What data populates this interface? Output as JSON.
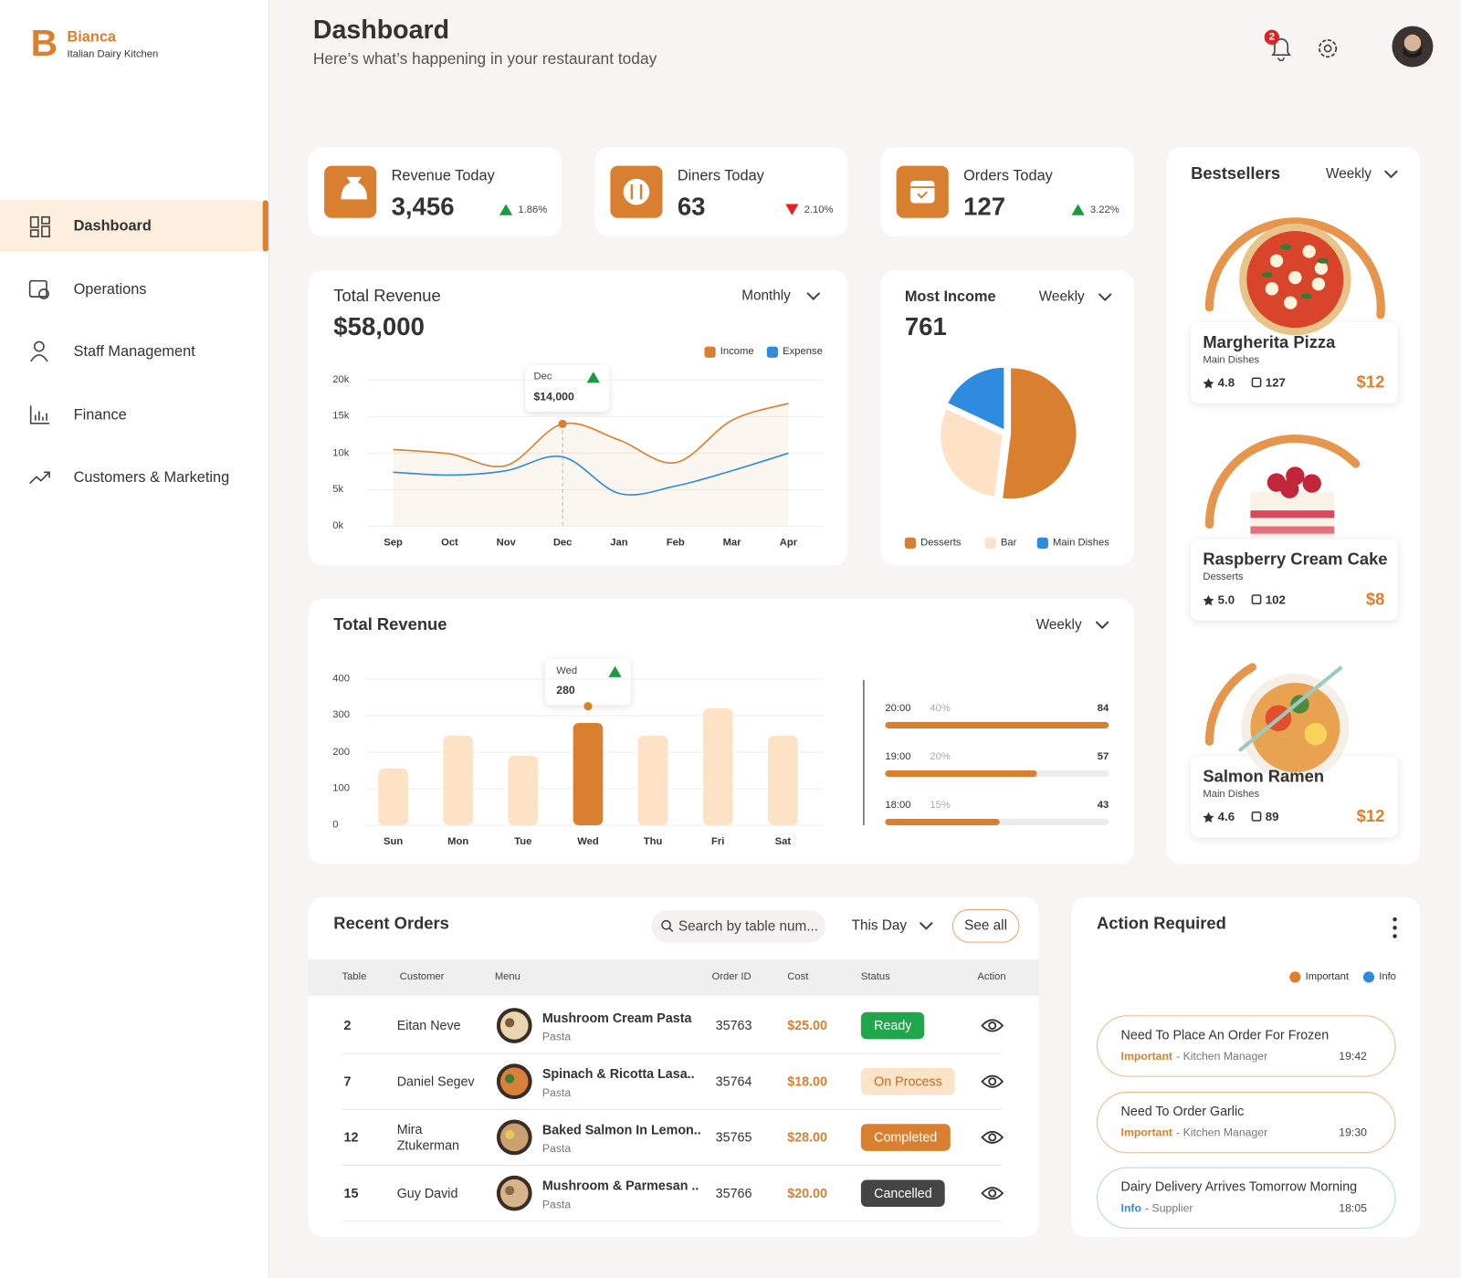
{
  "brand": {
    "initial": "B",
    "name": "Bianca",
    "tagline": "Italian Dairy Kitchen"
  },
  "header": {
    "title": "Dashboard",
    "subtitle": "Here’s what’s happening in your restaurant today",
    "notifications": "2"
  },
  "nav": [
    {
      "label": "Dashboard",
      "active": true
    },
    {
      "label": "Operations"
    },
    {
      "label": "Staff Management"
    },
    {
      "label": "Finance"
    },
    {
      "label": "Customers & Marketing"
    }
  ],
  "stats": [
    {
      "label": "Revenue Today",
      "value": "3,456",
      "change": "1.86%",
      "trend": "up"
    },
    {
      "label": "Diners Today",
      "value": "63",
      "change": "2.10%",
      "trend": "down"
    },
    {
      "label": "Orders Today",
      "value": "127",
      "change": "3.22%",
      "trend": "up"
    }
  ],
  "bestsellers": {
    "title": "Bestsellers",
    "period": "Weekly",
    "items": [
      {
        "name": "Margherita Pizza",
        "category": "Main Dishes",
        "rating": "4.8",
        "orders": "127",
        "price": "$12"
      },
      {
        "name": "Raspberry Cream Cake",
        "category": "Desserts",
        "rating": "5.0",
        "orders": "102",
        "price": "$8"
      },
      {
        "name": "Salmon Ramen",
        "category": "Main Dishes",
        "rating": "4.6",
        "orders": "89",
        "price": "$12"
      }
    ]
  },
  "orders": {
    "title": "Recent Orders",
    "search": "Search by table num...",
    "period": "This Day",
    "button": "See all",
    "columns": [
      "Table",
      "Customer",
      "Menu",
      "Order ID",
      "Cost",
      "Status",
      "Action"
    ],
    "rows": [
      {
        "table": "2",
        "customer": "Eitan Neve",
        "dish": "Mushroom Cream Pasta",
        "category": "Pasta",
        "order_id": "35763",
        "cost": "$25.00",
        "status": "Ready",
        "status_bg": "#1fa64a",
        "status_fg": "#ffffff"
      },
      {
        "table": "7",
        "customer": "Daniel Segev",
        "dish": "Spinach & Ricotta Lasa..",
        "category": "Pasta",
        "order_id": "35764",
        "cost": "$18.00",
        "status": "On Process",
        "status_bg": "#fde3c8",
        "status_fg": "#c46a1f"
      },
      {
        "table": "12",
        "customer": "Mira Ztukerman",
        "dish": "Baked Salmon In Lemon..",
        "category": "Pasta",
        "order_id": "35765",
        "cost": "$28.00",
        "status": "Completed",
        "status_bg": "#d98030",
        "status_fg": "#ffffff"
      },
      {
        "table": "15",
        "customer": "Guy David",
        "dish": "Mushroom & Parmesan ..",
        "category": "Pasta",
        "order_id": "35766",
        "cost": "$20.00",
        "status": "Cancelled",
        "status_bg": "#454545",
        "status_fg": "#ffffff"
      }
    ]
  },
  "actions": {
    "title": "Action Required",
    "legend": [
      {
        "label": "Important",
        "color": "#d98030"
      },
      {
        "label": "Info",
        "color": "#2f8be0"
      }
    ],
    "items": [
      {
        "title": "Need To Place An Order For Frozen",
        "tag": "Important",
        "detail": "- Kitchen Manager",
        "time": "19:42",
        "color": "#d98030",
        "border": "#f0b98a"
      },
      {
        "title": "Need To Order Garlic",
        "tag": "Important",
        "detail": "- Kitchen Manager",
        "time": "19:30",
        "color": "#d98030",
        "border": "#f0b98a"
      },
      {
        "title": "Dairy Delivery Arrives Tomorrow Morning",
        "tag": "Info",
        "detail": "- Supplier",
        "time": "18:05",
        "color": "#2f8be0",
        "border": "#a9d5f2"
      }
    ]
  },
  "chart_data": [
    {
      "type": "line",
      "title": "Total Revenue",
      "total": "$58,000",
      "period": "Monthly",
      "categories": [
        "Sep",
        "Oct",
        "Nov",
        "Dec",
        "Jan",
        "Feb",
        "Mar",
        "Apr"
      ],
      "series": [
        {
          "name": "Income",
          "color": "#d98030",
          "values": [
            10500,
            9900,
            8300,
            14000,
            11800,
            8700,
            14500,
            16800
          ],
          "value_labels": [
            null,
            null,
            null,
            "$14,000",
            null,
            null,
            null,
            null
          ]
        },
        {
          "name": "Expense",
          "color": "#2f8be0",
          "values": [
            7400,
            7000,
            7600,
            9500,
            4500,
            5500,
            7600,
            10000
          ]
        }
      ],
      "ylim": [
        0,
        20000
      ],
      "yticks": [
        {
          "value": 0,
          "label": "0k"
        },
        {
          "value": 5000,
          "label": "5k"
        },
        {
          "value": 10000,
          "label": "10k"
        },
        {
          "value": 15000,
          "label": "15k"
        },
        {
          "value": 20000,
          "label": "20k"
        }
      ],
      "grid": true
    },
    {
      "type": "pie",
      "title": "Most Income",
      "total": "761",
      "period": "Weekly",
      "categories": [
        "Desserts",
        "Bar",
        "Main Dishes"
      ],
      "values": [
        52,
        30,
        18
      ],
      "colors": [
        "#d98030",
        "#fde2c6",
        "#2f8be0"
      ]
    },
    {
      "type": "bar",
      "title": "Total Revenue",
      "period": "Weekly",
      "categories": [
        "Sun",
        "Mon",
        "Tue",
        "Wed",
        "Thu",
        "Fri",
        "Sat"
      ],
      "values": [
        155,
        245,
        190,
        280,
        245,
        320,
        245
      ],
      "color": "#fde2c6",
      "highlight": "Wed",
      "highlight_color": "#d98030",
      "ylim": [
        0,
        400
      ],
      "yticks": [
        0,
        100,
        200,
        300,
        400
      ],
      "grid": true
    },
    {
      "type": "hbar",
      "categories": [
        "20:00",
        "19:00",
        "18:00"
      ],
      "values": [
        84,
        57,
        43
      ],
      "labels": [
        "40%",
        "20%",
        "15%"
      ],
      "color": "#d98030"
    }
  ]
}
